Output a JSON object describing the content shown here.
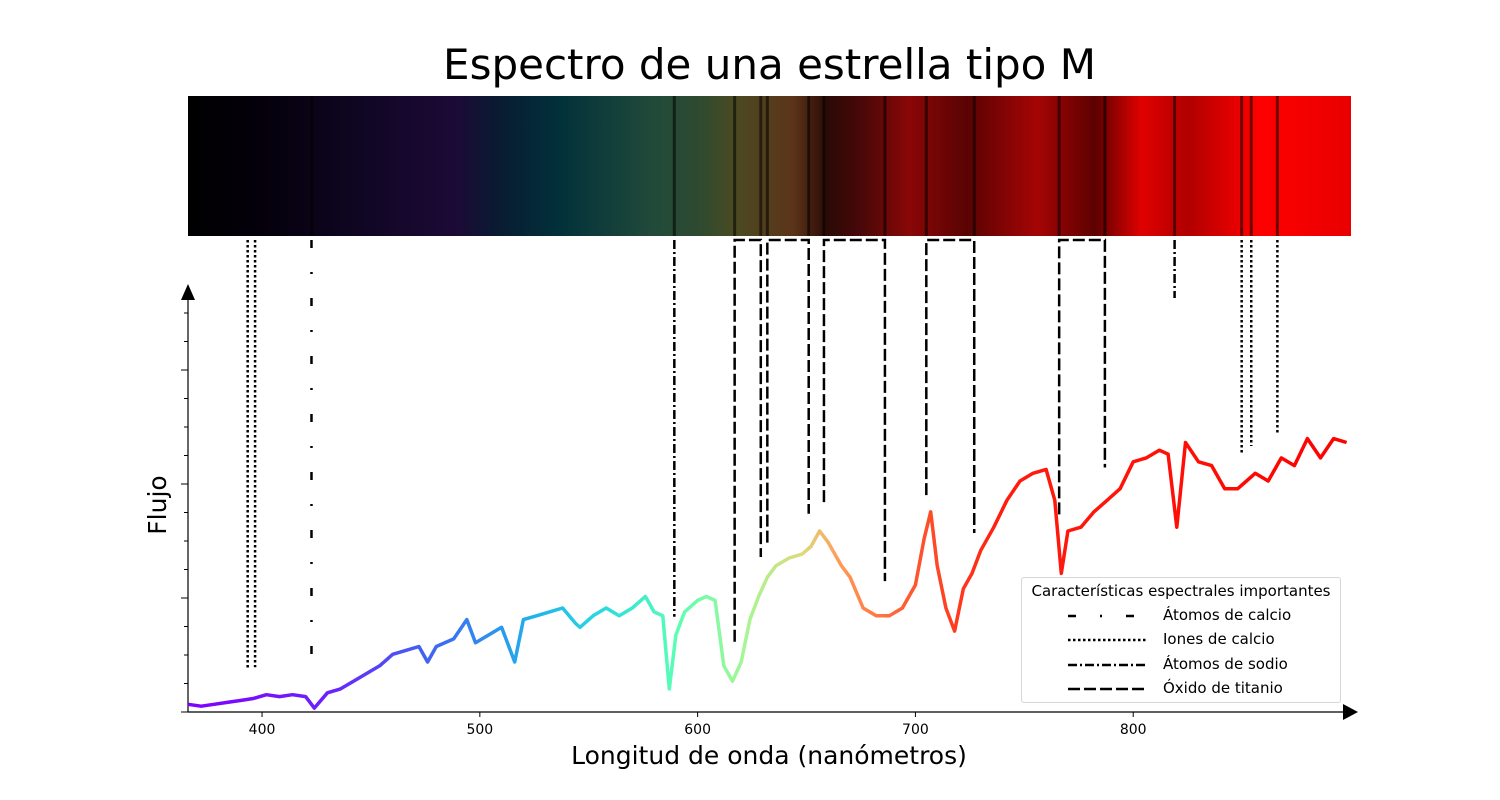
{
  "chart_data": {
    "type": "line",
    "title": "Espectro de una estrella tipo M",
    "xlabel": "Longitud de onda (nanómetros)",
    "ylabel": "Flujo",
    "xlim": [
      366,
      900
    ],
    "ylim": [
      0,
      1.2
    ],
    "x_ticks": [
      "400",
      "500",
      "600",
      "700",
      "800"
    ],
    "x_tick_values": [
      400,
      500,
      600,
      700,
      800
    ],
    "grid": false,
    "legend_position": "lower-right",
    "line_color": "rainbow gradient by wavelength (violet to red)",
    "series": [
      {
        "x": [
          366,
          372,
          378,
          384,
          390,
          396,
          402,
          408,
          414,
          420,
          424,
          430,
          436,
          442,
          448,
          454,
          460,
          466,
          472,
          476,
          480,
          488,
          494,
          498,
          504,
          510,
          516,
          520,
          526,
          532,
          538,
          544,
          546,
          552,
          558,
          564,
          570,
          576,
          580,
          584,
          587,
          590,
          594,
          600,
          604,
          608,
          612,
          616,
          620,
          624,
          628,
          632,
          636,
          642,
          648,
          652,
          656,
          660,
          666,
          670,
          676,
          682,
          688,
          694,
          700,
          704,
          707,
          710,
          714,
          718,
          722,
          726,
          730,
          736,
          742,
          748,
          754,
          760,
          764,
          767,
          770,
          776,
          782,
          788,
          794,
          800,
          806,
          812,
          816,
          820,
          824,
          830,
          836,
          842,
          848,
          852,
          856,
          862,
          868,
          874,
          880,
          886,
          892,
          898
        ],
        "y": [
          0.02,
          0.015,
          0.02,
          0.025,
          0.03,
          0.035,
          0.045,
          0.04,
          0.045,
          0.04,
          0.01,
          0.05,
          0.06,
          0.08,
          0.1,
          0.12,
          0.15,
          0.16,
          0.17,
          0.13,
          0.17,
          0.19,
          0.24,
          0.18,
          0.2,
          0.22,
          0.13,
          0.24,
          0.25,
          0.26,
          0.27,
          0.23,
          0.22,
          0.25,
          0.27,
          0.25,
          0.27,
          0.3,
          0.26,
          0.25,
          0.06,
          0.2,
          0.26,
          0.29,
          0.3,
          0.29,
          0.12,
          0.08,
          0.13,
          0.24,
          0.3,
          0.35,
          0.38,
          0.4,
          0.41,
          0.43,
          0.47,
          0.44,
          0.38,
          0.35,
          0.27,
          0.25,
          0.25,
          0.27,
          0.33,
          0.45,
          0.52,
          0.38,
          0.27,
          0.21,
          0.32,
          0.36,
          0.42,
          0.48,
          0.55,
          0.6,
          0.62,
          0.63,
          0.55,
          0.36,
          0.47,
          0.48,
          0.52,
          0.55,
          0.58,
          0.65,
          0.66,
          0.68,
          0.67,
          0.48,
          0.7,
          0.65,
          0.64,
          0.58,
          0.58,
          0.6,
          0.62,
          0.6,
          0.66,
          0.64,
          0.71,
          0.66,
          0.71,
          0.7
        ]
      }
    ],
    "annotations": [
      {
        "label": "Átomos de calcio",
        "style": "dash-dot-dash",
        "x": [
          422.7
        ]
      },
      {
        "label": "Iones de calcio",
        "style": "dotted",
        "x": [
          393.4,
          396.8,
          849.8,
          854.2,
          866.2
        ]
      },
      {
        "label": "Átomos de sodio",
        "style": "dash-dot",
        "x": [
          589.3,
          819.0
        ]
      },
      {
        "label": "Óxido de titanio",
        "style": "long-dash",
        "bands": [
          [
            617,
            629
          ],
          [
            632,
            651
          ],
          [
            658,
            686
          ],
          [
            705,
            727
          ],
          [
            766,
            787
          ]
        ]
      }
    ],
    "spectrum_strip": {
      "description": "color strip of the star spectrum",
      "absorption_lines": [
        422.7,
        589.3,
        617,
        629,
        632,
        651,
        658,
        686,
        705,
        727,
        766,
        787,
        819,
        849.8,
        854.2,
        866.2
      ]
    },
    "legend": {
      "title": "Características espectrales importantes",
      "items": [
        {
          "label": "Átomos de calcio",
          "style": "dash-dot-dash"
        },
        {
          "label": "Iones de calcio",
          "style": "dotted"
        },
        {
          "label": "Átomos de sodio",
          "style": "dash-dot"
        },
        {
          "label": "Óxido de titanio",
          "style": "long-dash"
        }
      ]
    }
  }
}
